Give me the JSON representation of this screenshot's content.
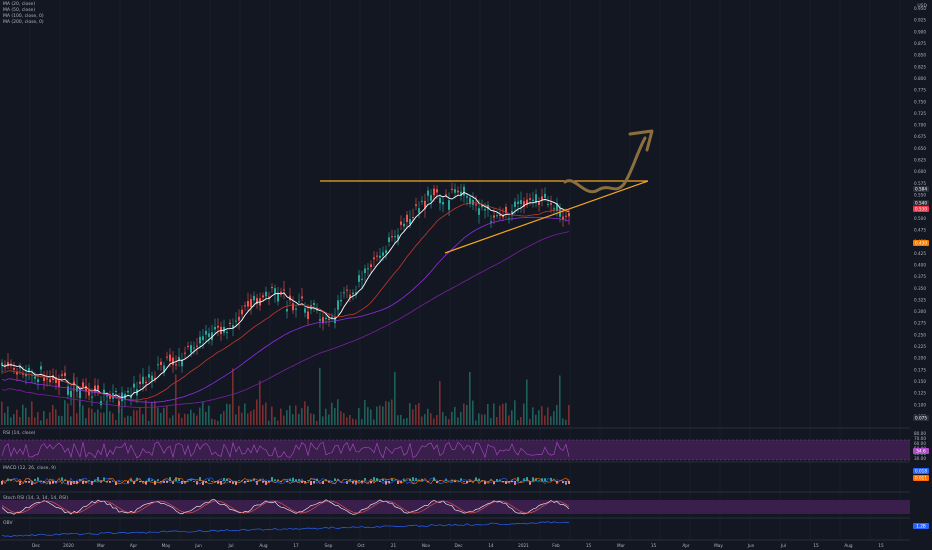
{
  "corner_label": "USD",
  "legend": {
    "line1": "MA (20, close)",
    "line2": "MA (50, close)",
    "line3": "MA (100, close, 0)",
    "line4": "MA (200, close, 0)"
  },
  "panes": {
    "rsi": "RSI (14, close)",
    "macd": "MACD (12, 26, close, 9)",
    "stoch": "Stoch RSI (14, 3, 14, 14, RSI)",
    "obv": "OBV"
  },
  "price_axis": [
    "0.950",
    "0.925",
    "0.900",
    "0.875",
    "0.850",
    "0.825",
    "0.800",
    "0.775",
    "0.750",
    "0.725",
    "0.700",
    "0.675",
    "0.650",
    "0.625",
    "0.600",
    "0.575",
    "0.550",
    "0.525",
    "0.500",
    "0.475",
    "0.450",
    "0.425",
    "0.400",
    "0.375",
    "0.350",
    "0.325",
    "0.300",
    "0.275",
    "0.250",
    "0.225",
    "0.200",
    "0.175",
    "0.150",
    "0.125",
    "0.100",
    "0.075"
  ],
  "rsi_axis": [
    "80.00",
    "70.00",
    "60.00",
    "50.00",
    "40.00",
    "30.00"
  ],
  "time_axis": [
    "Dec",
    "2020",
    "Mar",
    "Apr",
    "May",
    "Jun",
    "Jul",
    "Aug",
    "17",
    "Sep",
    "Oct",
    "21",
    "Nov",
    "Dec",
    "14",
    "2021",
    "Feb",
    "15",
    "Mar",
    "15",
    "Apr",
    "May",
    "Jun",
    "Jul",
    "15",
    "Aug",
    "15"
  ],
  "price_tags": [
    {
      "label": "0.584",
      "color": "#2a2e39"
    },
    {
      "label": "0.540",
      "color": "#2a2e39"
    },
    {
      "label": "0.530",
      "color": "#f23645"
    },
    {
      "label": "0.430",
      "color": "#f57c00"
    },
    {
      "label": "0.075",
      "color": "#2a2e39"
    }
  ],
  "rsi_tag": "54.6",
  "macd_tags": [
    "0.018",
    "0.011"
  ],
  "obv_tag": "1.2B",
  "colors": {
    "background": "#131722",
    "up": "#26a69a",
    "down": "#ef5350",
    "orange": "#f5a623",
    "ma20": "#ffffff",
    "ma50": "#c0392b",
    "ma100": "#8e2de2",
    "ma200": "#7b1fa2",
    "arrow": "#8b6f3e",
    "rsi_band": "#3a1f4d",
    "rsi_line": "#b04bc9"
  }
}
